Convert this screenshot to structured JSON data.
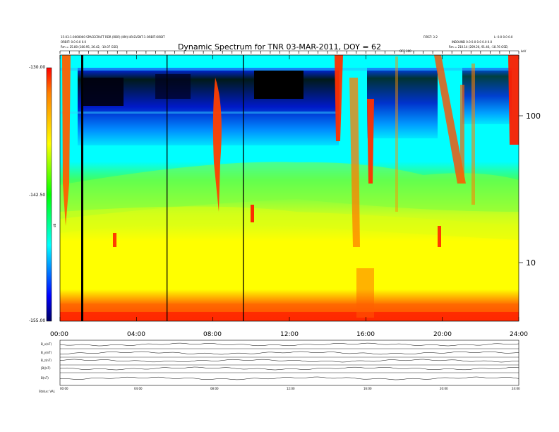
{
  "chart_data": [
    {
      "type": "heatmap",
      "title": "Dynamic Spectrum for TNR 03-MAR-2011, DOY = 62",
      "x_ticks": [
        "00:00",
        "04:00",
        "08:00",
        "12:00",
        "16:00",
        "20:00",
        "24:00"
      ],
      "xlim": [
        "00:00",
        "24:00"
      ],
      "y_scale": "log",
      "y_ticks": [
        "10",
        "100"
      ],
      "colorbar_ticks": [
        "-130.00",
        "-142.50",
        "-155.00"
      ],
      "colorbar_range": [
        -155.0,
        -130.0
      ],
      "colorbar_label": "dB",
      "colormap": [
        "#000000",
        "#0000ff",
        "#00ffff",
        "#00ff00",
        "#ffff00",
        "#ff0000"
      ],
      "top_right_tag": "keV",
      "header_left": [
        "15-03-1-0000000 SPACECRAFT RDR (RDR) (KM) HR-EVENT-1-ORBIT-ORBIT",
        "ORBIT: 0.0 0.0 0.0",
        "Rm = 25.80 (180.95, 26.42, -10.07 GSE)"
      ],
      "header_right": [
        "FIRST: 3-2",
        "L: 0.0 0.0 0.0",
        "INBOUND 0.0 0.0 0.0 0.0 0.0",
        "Rm = 210.14 (209.26, 91.46, -18.76 GSE)"
      ],
      "header_mid": "OFF 300"
    },
    {
      "type": "line",
      "title": "",
      "panels": [
        "B_x(nT)",
        "B_y(nT)",
        "B_z(nT)",
        "|B|(nT)",
        "B(nT)"
      ],
      "x_ticks": [
        "00:00",
        "04:00",
        "08:00",
        "12:00",
        "16:00",
        "20:00",
        "24:00"
      ],
      "footer": "Status: VAL"
    }
  ]
}
